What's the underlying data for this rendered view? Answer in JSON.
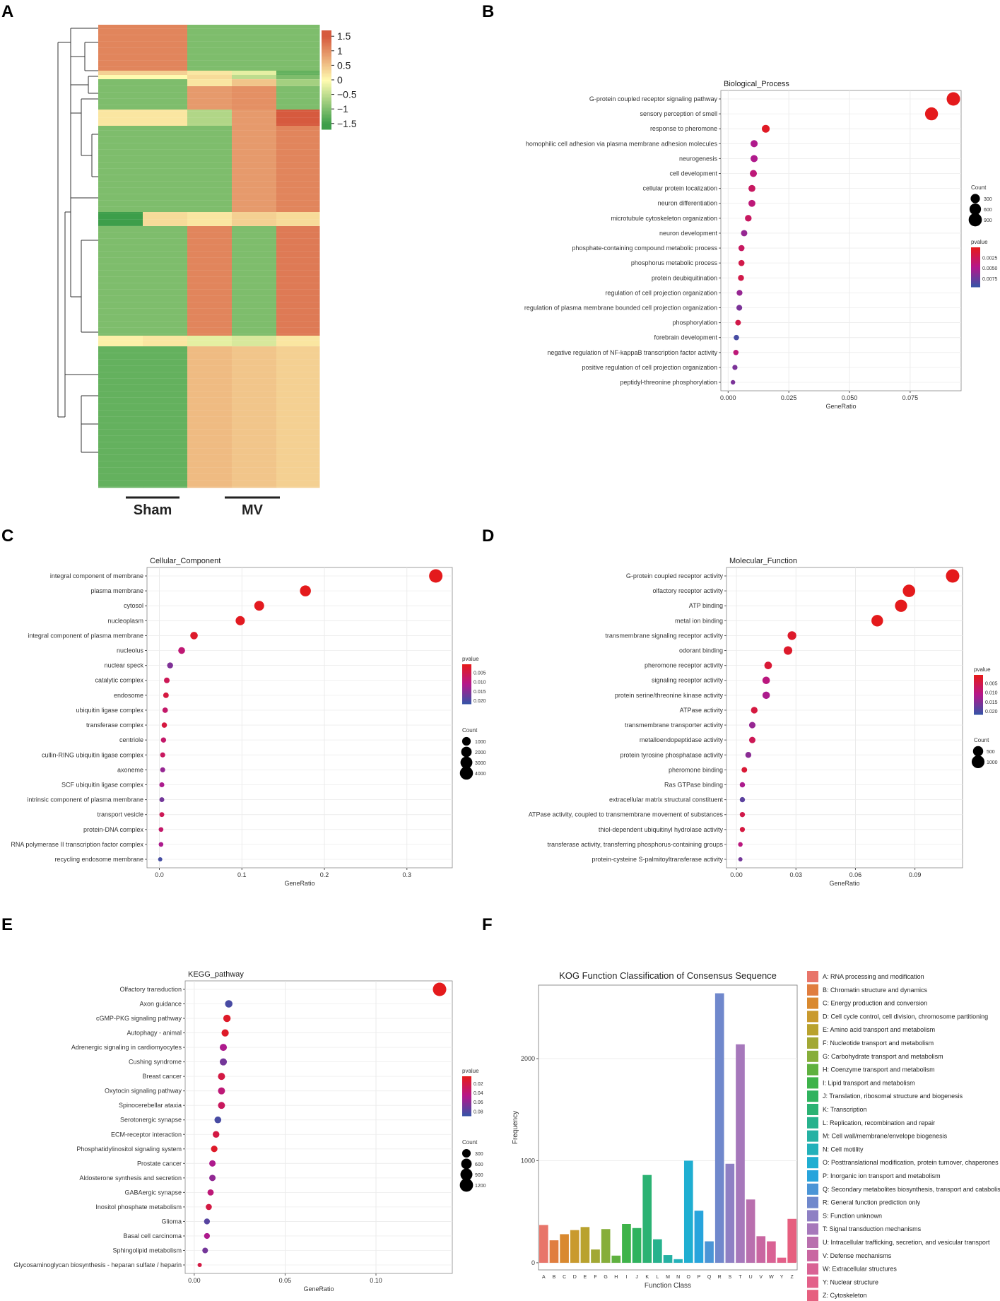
{
  "panels": {
    "A": "A",
    "B": "B",
    "C": "C",
    "D": "D",
    "E": "E",
    "F": "F"
  },
  "colors": {
    "high": "#e41a1c",
    "low": "#3a52a6",
    "mid": "#b5178b",
    "heat_low": "#3d9e4a",
    "heat_mid": "#fffbb0",
    "heat_high": "#d65a3e"
  },
  "heatmap": {
    "groups": [
      "Sham",
      "MV"
    ],
    "colorbar_ticks": [
      "1.5",
      "1",
      "0.5",
      "0",
      "−0.5",
      "−1",
      "−1.5"
    ],
    "colorbar_values": [
      1.5,
      1,
      0.5,
      0,
      -0.5,
      -1,
      -1.5
    ]
  },
  "chart_data": [
    {
      "id": "B",
      "type": "scatter",
      "title": "Biological_Process",
      "xlabel": "GeneRatio",
      "xlim": [
        -0.003,
        0.096
      ],
      "xticks": [
        0.0,
        0.025,
        0.05,
        0.075
      ],
      "xtick_labels": [
        "0.000",
        "0.025",
        "0.050",
        "0.075"
      ],
      "terms": [
        "G-protein coupled receptor signaling pathway",
        "sensory perception of smell",
        "response to pheromone",
        "homophilic cell adhesion via plasma membrane adhesion molecules",
        "neurogenesis",
        "cell development",
        "cellular protein localization",
        "neuron differentiation",
        "microtubule cytoskeleton organization",
        "neuron development",
        "phosphate-containing compound metabolic process",
        "phosphorus metabolic process",
        "protein deubiquitination",
        "regulation of cell projection organization",
        "regulation of plasma membrane bounded cell projection organization",
        "phosphorylation",
        "forebrain development",
        "negative regulation of NF-kappaB transcription factor activity",
        "positive regulation of cell projection organization",
        "peptidyl-threonine phosphorylation"
      ],
      "gene_ratio": [
        0.0928,
        0.0838,
        0.0155,
        0.0107,
        0.0107,
        0.0104,
        0.0098,
        0.0098,
        0.0083,
        0.0066,
        0.0055,
        0.0055,
        0.0053,
        0.0047,
        0.0046,
        0.0041,
        0.0034,
        0.0032,
        0.0028,
        0.002
      ],
      "count": [
        950,
        860,
        160,
        110,
        110,
        107,
        101,
        100,
        85,
        68,
        57,
        57,
        54,
        48,
        47,
        42,
        35,
        33,
        29,
        21
      ],
      "pvalue": [
        0.0001,
        0.0001,
        0.0005,
        0.005,
        0.005,
        0.004,
        0.003,
        0.004,
        0.003,
        0.006,
        0.003,
        0.002,
        0.002,
        0.006,
        0.007,
        0.002,
        0.009,
        0.004,
        0.007,
        0.007
      ],
      "legend_pvalue_title": "pvalue",
      "legend_pvalue_ticks": [
        "0.0025",
        "0.0050",
        "0.0075"
      ],
      "legend_pvalue_values": [
        0.0025,
        0.005,
        0.0075
      ],
      "pvalue_range": [
        0.0001,
        0.0095
      ],
      "legend_count_title": "Count",
      "legend_count_ticks": [
        "300",
        "600",
        "900"
      ],
      "legend_count_values": [
        300,
        600,
        900
      ],
      "count_range": [
        20,
        950
      ]
    },
    {
      "id": "C",
      "type": "scatter",
      "title": "Cellular_Component",
      "xlabel": "GeneRatio",
      "xlim": [
        -0.015,
        0.355
      ],
      "xticks": [
        0.0,
        0.1,
        0.2,
        0.3
      ],
      "xtick_labels": [
        "0.0",
        "0.1",
        "0.2",
        "0.3"
      ],
      "terms": [
        "integral component of membrane",
        "plasma membrane",
        "cytosol",
        "nucleoplasm",
        "integral component of plasma membrane",
        "nucleolus",
        "nuclear speck",
        "catalytic complex",
        "endosome",
        "ubiquitin ligase complex",
        "transferase complex",
        "centriole",
        "cullin-RING ubiquitin ligase complex",
        "axoneme",
        "SCF ubiquitin ligase complex",
        "intrinsic component of plasma membrane",
        "transport vesicle",
        "protein-DNA complex",
        "RNA polymerase II transcription factor complex",
        "recycling endosome membrane"
      ],
      "gene_ratio": [
        0.335,
        0.177,
        0.121,
        0.098,
        0.042,
        0.027,
        0.013,
        0.009,
        0.008,
        0.007,
        0.006,
        0.005,
        0.004,
        0.004,
        0.003,
        0.003,
        0.003,
        0.002,
        0.002,
        0.001
      ],
      "count": [
        4300,
        2300,
        1600,
        1280,
        550,
        350,
        170,
        120,
        105,
        95,
        80,
        70,
        55,
        52,
        45,
        40,
        38,
        30,
        28,
        18
      ],
      "pvalue": [
        0.0005,
        0.0005,
        0.0008,
        0.001,
        0.002,
        0.009,
        0.016,
        0.006,
        0.004,
        0.008,
        0.004,
        0.008,
        0.007,
        0.014,
        0.012,
        0.017,
        0.006,
        0.008,
        0.012,
        0.021
      ],
      "legend_pvalue_title": "pvalue",
      "legend_pvalue_ticks": [
        "0.005",
        "0.010",
        "0.015",
        "0.020"
      ],
      "legend_pvalue_values": [
        0.005,
        0.01,
        0.015,
        0.02
      ],
      "pvalue_range": [
        0.0005,
        0.022
      ],
      "legend_count_title": "Count",
      "legend_count_ticks": [
        "1000",
        "2000",
        "3000",
        "4000"
      ],
      "legend_count_values": [
        1000,
        2000,
        3000,
        4000
      ],
      "count_range": [
        18,
        4300
      ]
    },
    {
      "id": "D",
      "type": "scatter",
      "title": "Molecular_Function",
      "xlabel": "GeneRatio",
      "xlim": [
        -0.005,
        0.114
      ],
      "xticks": [
        0.0,
        0.03,
        0.06,
        0.09
      ],
      "xtick_labels": [
        "0.00",
        "0.03",
        "0.06",
        "0.09"
      ],
      "terms": [
        "G-protein coupled receptor activity",
        "olfactory receptor activity",
        "ATP binding",
        "metal ion binding",
        "transmembrane signaling receptor activity",
        "odorant binding",
        "pheromone receptor activity",
        "signaling receptor activity",
        "protein serine/threonine kinase activity",
        "ATPase activity",
        "transmembrane transporter activity",
        "metalloendopeptidase activity",
        "protein tyrosine phosphatase activity",
        "pheromone binding",
        "Ras GTPase binding",
        "extracellular matrix structural constituent",
        "ATPase activity, coupled to transmembrane movement of substances",
        "thiol-dependent ubiquitinyl hydrolase activity",
        "transferase activity, transferring phosphorus-containing groups",
        "protein-cysteine S-palmitoyltransferase activity"
      ],
      "gene_ratio": [
        0.109,
        0.087,
        0.083,
        0.071,
        0.028,
        0.026,
        0.016,
        0.015,
        0.015,
        0.009,
        0.008,
        0.008,
        0.006,
        0.004,
        0.003,
        0.003,
        0.003,
        0.003,
        0.002,
        0.002
      ],
      "count": [
        1150,
        920,
        870,
        750,
        290,
        270,
        170,
        160,
        155,
        95,
        85,
        80,
        60,
        45,
        35,
        33,
        32,
        30,
        22,
        20
      ],
      "pvalue": [
        0.0005,
        0.0005,
        0.0005,
        0.0005,
        0.002,
        0.002,
        0.003,
        0.01,
        0.012,
        0.004,
        0.014,
        0.006,
        0.015,
        0.003,
        0.012,
        0.019,
        0.005,
        0.004,
        0.01,
        0.017
      ],
      "legend_pvalue_title": "pvalue",
      "legend_pvalue_ticks": [
        "0.005",
        "0.010",
        "0.015",
        "0.020"
      ],
      "legend_pvalue_values": [
        0.005,
        0.01,
        0.015,
        0.02
      ],
      "pvalue_range": [
        0.0005,
        0.022
      ],
      "legend_count_title": "Count",
      "legend_count_ticks": [
        "500",
        "1000"
      ],
      "legend_count_values": [
        500,
        1000
      ],
      "count_range": [
        20,
        1150
      ]
    },
    {
      "id": "E",
      "type": "scatter",
      "title": "KEGG_pathway",
      "xlabel": "GeneRatio",
      "xlim": [
        -0.005,
        0.142
      ],
      "xticks": [
        0.0,
        0.05,
        0.1
      ],
      "xtick_labels": [
        "0.00",
        "0.05",
        "0.10"
      ],
      "terms": [
        "Olfactory transduction",
        "Axon guidance",
        "cGMP-PKG signaling pathway",
        "Autophagy - animal",
        "Adrenergic signaling in cardiomyocytes",
        "Cushing syndrome",
        "Breast cancer",
        "Oxytocin signaling pathway",
        "Spinocerebellar ataxia",
        "Serotonergic synapse",
        "ECM-receptor interaction",
        "Phosphatidylinositol signaling system",
        "Prostate cancer",
        "Aldosterone synthesis and secretion",
        "GABAergic synapse",
        "Inositol phosphate metabolism",
        "Glioma",
        "Basal cell carcinoma",
        "Sphingolipid metabolism",
        "Glycosaminoglycan biosynthesis - heparan sulfate / heparin"
      ],
      "gene_ratio": [
        0.135,
        0.019,
        0.018,
        0.017,
        0.016,
        0.016,
        0.015,
        0.015,
        0.015,
        0.013,
        0.012,
        0.011,
        0.01,
        0.01,
        0.009,
        0.008,
        0.007,
        0.007,
        0.006,
        0.003
      ],
      "count": [
        1250,
        180,
        170,
        160,
        150,
        150,
        145,
        143,
        140,
        125,
        115,
        105,
        98,
        97,
        88,
        80,
        70,
        67,
        60,
        30
      ],
      "pvalue": [
        0.005,
        0.085,
        0.01,
        0.01,
        0.05,
        0.07,
        0.02,
        0.04,
        0.03,
        0.085,
        0.02,
        0.01,
        0.05,
        0.06,
        0.04,
        0.02,
        0.08,
        0.05,
        0.07,
        0.02
      ],
      "legend_pvalue_title": "pvalue",
      "legend_pvalue_ticks": [
        "0.02",
        "0.04",
        "0.06",
        "0.08"
      ],
      "legend_pvalue_values": [
        0.02,
        0.04,
        0.06,
        0.08
      ],
      "pvalue_range": [
        0.005,
        0.09
      ],
      "legend_count_title": "Count",
      "legend_count_ticks": [
        "300",
        "600",
        "900",
        "1200"
      ],
      "legend_count_values": [
        300,
        600,
        900,
        1200
      ],
      "count_range": [
        30,
        1250
      ]
    },
    {
      "id": "F",
      "type": "bar",
      "title": "KOG Function Classification of Consensus Sequence",
      "xlabel": "Function Class",
      "ylabel": "Frequency",
      "ylim": [
        -70,
        2720
      ],
      "yticks": [
        0,
        1000,
        2000
      ],
      "ytick_labels": [
        "0",
        "1000",
        "2000"
      ],
      "categories": [
        "A",
        "B",
        "C",
        "D",
        "E",
        "F",
        "G",
        "H",
        "I",
        "J",
        "K",
        "L",
        "M",
        "N",
        "O",
        "P",
        "Q",
        "R",
        "S",
        "T",
        "U",
        "V",
        "W",
        "Y",
        "Z"
      ],
      "values": [
        370,
        220,
        280,
        320,
        350,
        130,
        330,
        70,
        380,
        340,
        860,
        230,
        75,
        35,
        1000,
        510,
        210,
        2640,
        970,
        2140,
        620,
        260,
        210,
        50,
        430
      ],
      "bar_colors": [
        "#e8756a",
        "#e07d3e",
        "#d9892f",
        "#c99a2e",
        "#b9a22e",
        "#a2a834",
        "#86ae3a",
        "#5fb13f",
        "#3eb34a",
        "#2fb35e",
        "#2bb273",
        "#27b28d",
        "#25b1a3",
        "#22b1ba",
        "#1faed1",
        "#27a4dc",
        "#4b95d6",
        "#7088cc",
        "#8e80c4",
        "#a678bb",
        "#b96fae",
        "#c966a1",
        "#d96294",
        "#e36089",
        "#e65f7f"
      ],
      "legend_entries": [
        "A: RNA processing and modification",
        "B: Chromatin structure and dynamics",
        "C: Energy production and conversion",
        "D: Cell cycle control, cell division, chromosome partitioning",
        "E: Amino acid transport and metabolism",
        "F: Nucleotide transport and metabolism",
        "G: Carbohydrate transport and metabolism",
        "H: Coenzyme transport and metabolism",
        "I: Lipid transport and metabolism",
        "J: Translation, ribosomal structure and biogenesis",
        "K: Transcription",
        "L: Replication, recombination and repair",
        "M: Cell wall/membrane/envelope biogenesis",
        "N: Cell motility",
        "O: Posttranslational modification, protein turnover, chaperones",
        "P: Inorganic ion transport and metabolism",
        "Q: Secondary metabolites biosynthesis, transport and catabolism",
        "R: General function prediction only",
        "S: Function unknown",
        "T: Signal transduction mechanisms",
        "U: Intracellular trafficking, secretion, and vesicular transport",
        "V: Defense mechanisms",
        "W: Extracellular structures",
        "Y: Nuclear structure",
        "Z: Cytoskeleton"
      ]
    }
  ]
}
